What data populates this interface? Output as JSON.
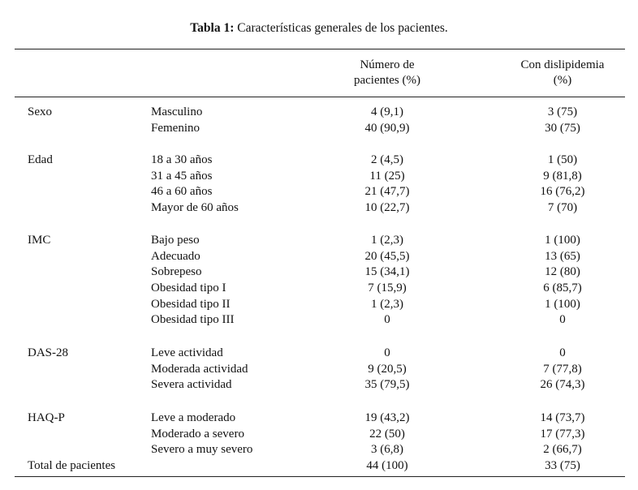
{
  "caption": {
    "label": "Tabla 1:",
    "text": " Características generales de los pacientes."
  },
  "headers": {
    "n_line1": "Número de",
    "n_line2": "pacientes (%)",
    "d_line1": "Con dislipidemia",
    "d_line2": "(%)"
  },
  "groups": [
    {
      "category": "Sexo",
      "rows": [
        {
          "sub": "Masculino",
          "n": "4 (9,1)",
          "d": "3 (75)"
        },
        {
          "sub": "Femenino",
          "n": "40 (90,9)",
          "d": "30 (75)"
        }
      ]
    },
    {
      "category": "Edad",
      "rows": [
        {
          "sub": "18 a 30 años",
          "n": "2 (4,5)",
          "d": "1 (50)"
        },
        {
          "sub": "31 a 45 años",
          "n": "11 (25)",
          "d": "9 (81,8)"
        },
        {
          "sub": "46 a 60 años",
          "n": "21 (47,7)",
          "d": "16 (76,2)"
        },
        {
          "sub": "Mayor de 60 años",
          "n": "10 (22,7)",
          "d": "7 (70)"
        }
      ]
    },
    {
      "category": "IMC",
      "rows": [
        {
          "sub": "Bajo peso",
          "n": "1 (2,3)",
          "d": "1 (100)"
        },
        {
          "sub": "Adecuado",
          "n": "20 (45,5)",
          "d": "13 (65)"
        },
        {
          "sub": "Sobrepeso",
          "n": "15 (34,1)",
          "d": "12 (80)"
        },
        {
          "sub": "Obesidad tipo I",
          "n": "7 (15,9)",
          "d": "6 (85,7)"
        },
        {
          "sub": "Obesidad tipo II",
          "n": "1 (2,3)",
          "d": "1 (100)"
        },
        {
          "sub": "Obesidad tipo III",
          "n": "0",
          "d": "0"
        }
      ]
    },
    {
      "category": "DAS-28",
      "rows": [
        {
          "sub": "Leve actividad",
          "n": "0",
          "d": "0"
        },
        {
          "sub": "Moderada actividad",
          "n": "9 (20,5)",
          "d": "7 (77,8)"
        },
        {
          "sub": "Severa actividad",
          "n": "35 (79,5)",
          "d": "26 (74,3)"
        }
      ]
    },
    {
      "category": "HAQ-P",
      "rows": [
        {
          "sub": "Leve a moderado",
          "n": "19 (43,2)",
          "d": "14 (73,7)"
        },
        {
          "sub": "Moderado a severo",
          "n": "22 (50)",
          "d": "17 (77,3)"
        },
        {
          "sub": "Severo a muy severo",
          "n": "3 (6,8)",
          "d": "2 (66,7)"
        }
      ]
    }
  ],
  "total": {
    "label": "Total de pacientes",
    "n": "44 (100)",
    "d": "33 (75)"
  }
}
